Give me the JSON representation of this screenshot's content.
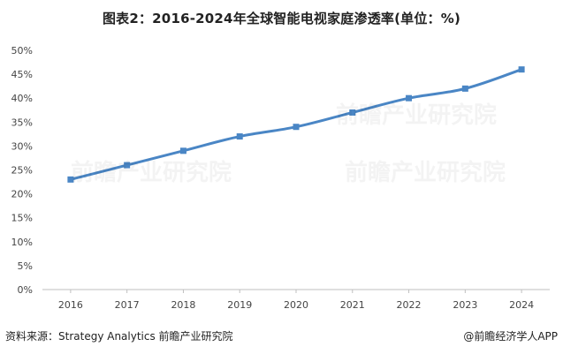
{
  "title": "图表2：2016-2024年全球智能电视家庭渗透率(单位：%)",
  "source": "资料来源：Strategy Analytics 前瞻产业研究院",
  "credit": "@前瞻经济学人APP",
  "watermark": "前瞻产业研究院",
  "colors": {
    "line": "#4a86c5",
    "marker": "#4a86c5",
    "axis": "#bfbfbf"
  },
  "chart_data": {
    "type": "line",
    "categories": [
      "2016",
      "2017",
      "2018",
      "2019",
      "2020",
      "2021",
      "2022",
      "2023",
      "2024"
    ],
    "series": [
      {
        "values": [
          23,
          26,
          29,
          32,
          34,
          37,
          40,
          42,
          46
        ]
      }
    ],
    "ylim": [
      0,
      50
    ],
    "yticks": [
      "0%",
      "5%",
      "10%",
      "15%",
      "20%",
      "25%",
      "30%",
      "35%",
      "40%",
      "45%",
      "50%"
    ],
    "grid": false,
    "legend": "none"
  }
}
